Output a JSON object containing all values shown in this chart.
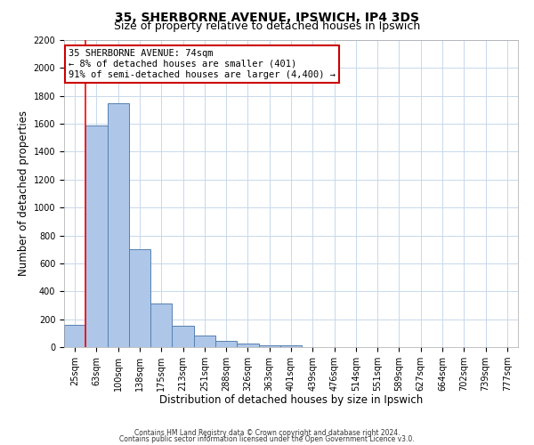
{
  "title": "35, SHERBORNE AVENUE, IPSWICH, IP4 3DS",
  "subtitle": "Size of property relative to detached houses in Ipswich",
  "xlabel": "Distribution of detached houses by size in Ipswich",
  "ylabel": "Number of detached properties",
  "bar_labels": [
    "25sqm",
    "63sqm",
    "100sqm",
    "138sqm",
    "175sqm",
    "213sqm",
    "251sqm",
    "288sqm",
    "326sqm",
    "363sqm",
    "401sqm",
    "439sqm",
    "476sqm",
    "514sqm",
    "551sqm",
    "589sqm",
    "627sqm",
    "664sqm",
    "702sqm",
    "739sqm",
    "777sqm"
  ],
  "bar_values": [
    160,
    1590,
    1750,
    700,
    315,
    155,
    85,
    45,
    25,
    15,
    10,
    0,
    0,
    0,
    0,
    0,
    0,
    0,
    0,
    0,
    0
  ],
  "bar_color": "#aec6e8",
  "bar_edge_color": "#5580b0",
  "red_line_x": 0.5,
  "annotation_title": "35 SHERBORNE AVENUE: 74sqm",
  "annotation_line1": "← 8% of detached houses are smaller (401)",
  "annotation_line2": "91% of semi-detached houses are larger (4,400) →",
  "annotation_box_color": "#ffffff",
  "annotation_box_edge": "#cc0000",
  "ylim": [
    0,
    2200
  ],
  "yticks": [
    0,
    200,
    400,
    600,
    800,
    1000,
    1200,
    1400,
    1600,
    1800,
    2000,
    2200
  ],
  "footnote1": "Contains HM Land Registry data © Crown copyright and database right 2024.",
  "footnote2": "Contains public sector information licensed under the Open Government Licence v3.0.",
  "bg_color": "#ffffff",
  "grid_color": "#c8d8ea",
  "title_fontsize": 10,
  "subtitle_fontsize": 9,
  "xlabel_fontsize": 8.5,
  "ylabel_fontsize": 8.5,
  "annotation_fontsize": 7.5,
  "tick_fontsize": 7,
  "footnote_fontsize": 5.5
}
